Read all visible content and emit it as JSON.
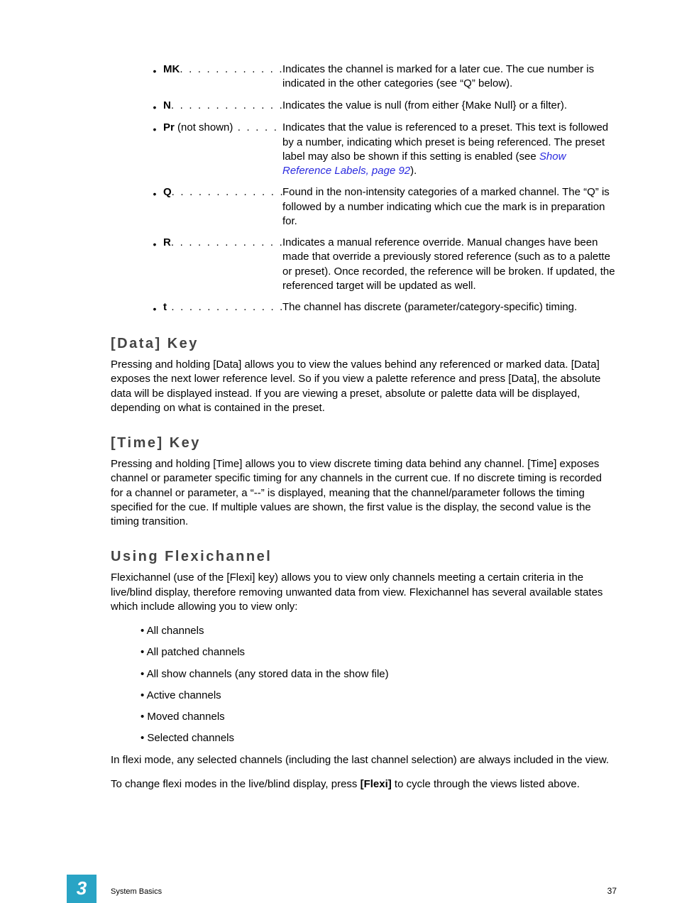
{
  "defs": [
    {
      "term": "MK",
      "note": "",
      "dots": ". . . . . . . . . . . . .",
      "def": "Indicates the channel is marked for a later cue. The cue number is indicated in the other categories (see “Q” below).",
      "link": ""
    },
    {
      "term": "N",
      "note": "",
      "dots": ". . . . . . . . . . . . . . .",
      "def": "Indicates the value is null (from either {Make Null} or a filter).",
      "link": ""
    },
    {
      "term": "Pr",
      "note": " (not shown)",
      "dots": " . . . . .",
      "def": "Indicates that the value is referenced to a preset. This text is followed by a number, indicating which preset is being referenced. The preset label may also be shown if this setting is enabled (see ",
      "link": "Show Reference Labels, page 92",
      "after": ")."
    },
    {
      "term": "Q",
      "note": "",
      "dots": ". . . . . . . . . . . . . . .",
      "def": "Found in the non-intensity categories of a marked channel. The “Q” is followed by a number indicating which cue the mark is in preparation for.",
      "link": ""
    },
    {
      "term": "R",
      "note": "",
      "dots": ". . . . . . . . . . . . . . .",
      "def": "Indicates a manual reference override. Manual changes have been made that override a previously stored reference (such as to a palette or preset). Once recorded, the reference will be broken. If updated, the referenced target will be updated as well.",
      "link": ""
    },
    {
      "term": "t",
      "note": "",
      "dots": " . . . . . . . . . . . . . . .",
      "def": "The channel has discrete (parameter/category-specific) timing.",
      "link": ""
    }
  ],
  "sections": {
    "data_key": {
      "heading": "[Data] Key",
      "body": "Pressing and holding [Data] allows you to view the values behind any referenced or marked data. [Data] exposes the next lower reference level. So if you view a palette reference and press [Data], the absolute data will be displayed instead. If you are viewing a preset, absolute or palette data will be displayed, depending on what is contained in the preset."
    },
    "time_key": {
      "heading": "[Time] Key",
      "body": "Pressing and holding [Time] allows you to view discrete timing data behind any channel. [Time] exposes channel or parameter specific timing for any channels in the current cue. If no discrete timing is recorded for a channel or parameter, a “--” is displayed, meaning that the channel/parameter follows the timing specified for the cue. If multiple values are shown, the first value is the display, the second value is the timing transition."
    },
    "flexi": {
      "heading": "Using Flexichannel",
      "intro": "Flexichannel (use of the [Flexi] key) allows you to view only channels meeting a certain criteria in the live/blind display, therefore removing unwanted data from view. Flexichannel has several available states which include allowing you to view only:",
      "items": [
        "All channels",
        "All patched channels",
        "All show channels (any stored data in the show file)",
        "Active channels",
        "Moved channels",
        "Selected channels"
      ],
      "after1": "In flexi mode, any selected channels (including the last channel selection) are always included in the view.",
      "after2_pre": "To change flexi modes in the live/blind display, press ",
      "after2_bold": "[Flexi]",
      "after2_post": " to cycle through the views listed above."
    }
  },
  "footer": {
    "chapter": "3",
    "section": "System Basics",
    "page": "37"
  },
  "colors": {
    "heading": "#444444",
    "link": "#2a2ae0",
    "accent": "#29a4c5",
    "text": "#000000",
    "bg": "#ffffff"
  }
}
